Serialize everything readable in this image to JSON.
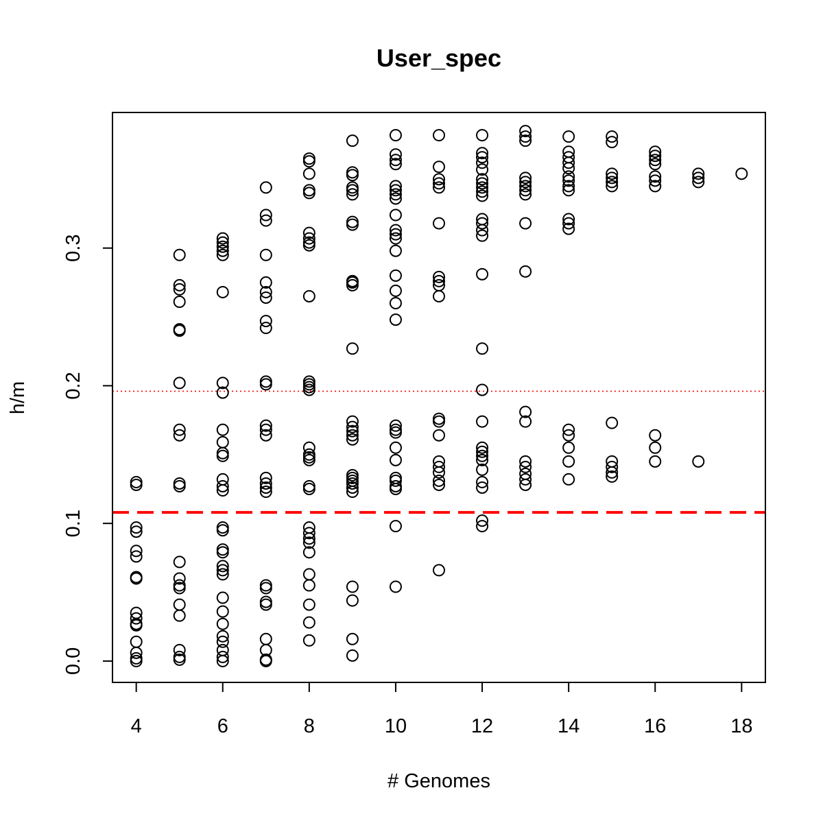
{
  "chart_data": {
    "type": "scatter",
    "title": "User_spec",
    "xlabel": "# Genomes",
    "ylabel": "h/m",
    "xlim": [
      3.45,
      18.55
    ],
    "ylim": [
      -0.0155,
      0.3985
    ],
    "xticks": [
      4,
      6,
      8,
      10,
      12,
      14,
      16,
      18
    ],
    "xtick_labels": [
      "4",
      "6",
      "8",
      "10",
      "12",
      "14",
      "16",
      "18"
    ],
    "yticks": [
      0.0,
      0.1,
      0.2,
      0.3
    ],
    "ytick_labels": [
      "0.0",
      "0.1",
      "0.2",
      "0.3"
    ],
    "grid": false,
    "marker": "open-circle",
    "reference_lines": [
      {
        "y": 0.108,
        "style": "dashed",
        "color": "#ff0000"
      },
      {
        "y": 0.196,
        "style": "dotted",
        "color": "#ff0000"
      }
    ],
    "points": [
      [
        4,
        0.13
      ],
      [
        4,
        0.128
      ],
      [
        4,
        0.097
      ],
      [
        4,
        0.094
      ],
      [
        4,
        0.08
      ],
      [
        4,
        0.076
      ],
      [
        4,
        0.061
      ],
      [
        4,
        0.06
      ],
      [
        4,
        0.035
      ],
      [
        4,
        0.031
      ],
      [
        4,
        0.027
      ],
      [
        4,
        0.026
      ],
      [
        4,
        0.014
      ],
      [
        4,
        0.006
      ],
      [
        4,
        0.002
      ],
      [
        4,
        0.0
      ],
      [
        5,
        0.295
      ],
      [
        5,
        0.273
      ],
      [
        5,
        0.27
      ],
      [
        5,
        0.261
      ],
      [
        5,
        0.241
      ],
      [
        5,
        0.24
      ],
      [
        5,
        0.202
      ],
      [
        5,
        0.168
      ],
      [
        5,
        0.164
      ],
      [
        5,
        0.129
      ],
      [
        5,
        0.127
      ],
      [
        5,
        0.072
      ],
      [
        5,
        0.06
      ],
      [
        5,
        0.055
      ],
      [
        5,
        0.053
      ],
      [
        5,
        0.041
      ],
      [
        5,
        0.033
      ],
      [
        5,
        0.008
      ],
      [
        5,
        0.003
      ],
      [
        5,
        0.001
      ],
      [
        6,
        0.307
      ],
      [
        6,
        0.304
      ],
      [
        6,
        0.301
      ],
      [
        6,
        0.298
      ],
      [
        6,
        0.295
      ],
      [
        6,
        0.268
      ],
      [
        6,
        0.202
      ],
      [
        6,
        0.195
      ],
      [
        6,
        0.168
      ],
      [
        6,
        0.159
      ],
      [
        6,
        0.151
      ],
      [
        6,
        0.149
      ],
      [
        6,
        0.132
      ],
      [
        6,
        0.127
      ],
      [
        6,
        0.124
      ],
      [
        6,
        0.097
      ],
      [
        6,
        0.095
      ],
      [
        6,
        0.081
      ],
      [
        6,
        0.079
      ],
      [
        6,
        0.069
      ],
      [
        6,
        0.066
      ],
      [
        6,
        0.063
      ],
      [
        6,
        0.046
      ],
      [
        6,
        0.036
      ],
      [
        6,
        0.027
      ],
      [
        6,
        0.018
      ],
      [
        6,
        0.014
      ],
      [
        6,
        0.008
      ],
      [
        6,
        0.003
      ],
      [
        6,
        0.0
      ],
      [
        7,
        0.344
      ],
      [
        7,
        0.324
      ],
      [
        7,
        0.32
      ],
      [
        7,
        0.295
      ],
      [
        7,
        0.275
      ],
      [
        7,
        0.268
      ],
      [
        7,
        0.264
      ],
      [
        7,
        0.247
      ],
      [
        7,
        0.242
      ],
      [
        7,
        0.203
      ],
      [
        7,
        0.201
      ],
      [
        7,
        0.171
      ],
      [
        7,
        0.168
      ],
      [
        7,
        0.164
      ],
      [
        7,
        0.133
      ],
      [
        7,
        0.129
      ],
      [
        7,
        0.126
      ],
      [
        7,
        0.123
      ],
      [
        7,
        0.055
      ],
      [
        7,
        0.053
      ],
      [
        7,
        0.043
      ],
      [
        7,
        0.041
      ],
      [
        7,
        0.016
      ],
      [
        7,
        0.008
      ],
      [
        7,
        0.001
      ],
      [
        7,
        0.0
      ],
      [
        8,
        0.365
      ],
      [
        8,
        0.363
      ],
      [
        8,
        0.354
      ],
      [
        8,
        0.342
      ],
      [
        8,
        0.34
      ],
      [
        8,
        0.311
      ],
      [
        8,
        0.307
      ],
      [
        8,
        0.304
      ],
      [
        8,
        0.302
      ],
      [
        8,
        0.265
      ],
      [
        8,
        0.203
      ],
      [
        8,
        0.201
      ],
      [
        8,
        0.199
      ],
      [
        8,
        0.197
      ],
      [
        8,
        0.155
      ],
      [
        8,
        0.15
      ],
      [
        8,
        0.148
      ],
      [
        8,
        0.146
      ],
      [
        8,
        0.127
      ],
      [
        8,
        0.125
      ],
      [
        8,
        0.097
      ],
      [
        8,
        0.093
      ],
      [
        8,
        0.089
      ],
      [
        8,
        0.086
      ],
      [
        8,
        0.079
      ],
      [
        8,
        0.063
      ],
      [
        8,
        0.055
      ],
      [
        8,
        0.041
      ],
      [
        8,
        0.028
      ],
      [
        8,
        0.015
      ],
      [
        9,
        0.378
      ],
      [
        9,
        0.355
      ],
      [
        9,
        0.353
      ],
      [
        9,
        0.344
      ],
      [
        9,
        0.342
      ],
      [
        9,
        0.339
      ],
      [
        9,
        0.319
      ],
      [
        9,
        0.317
      ],
      [
        9,
        0.276
      ],
      [
        9,
        0.275
      ],
      [
        9,
        0.273
      ],
      [
        9,
        0.227
      ],
      [
        9,
        0.174
      ],
      [
        9,
        0.17
      ],
      [
        9,
        0.167
      ],
      [
        9,
        0.164
      ],
      [
        9,
        0.161
      ],
      [
        9,
        0.135
      ],
      [
        9,
        0.133
      ],
      [
        9,
        0.131
      ],
      [
        9,
        0.129
      ],
      [
        9,
        0.126
      ],
      [
        9,
        0.123
      ],
      [
        9,
        0.054
      ],
      [
        9,
        0.044
      ],
      [
        9,
        0.016
      ],
      [
        9,
        0.004
      ],
      [
        10,
        0.382
      ],
      [
        10,
        0.368
      ],
      [
        10,
        0.364
      ],
      [
        10,
        0.361
      ],
      [
        10,
        0.345
      ],
      [
        10,
        0.342
      ],
      [
        10,
        0.339
      ],
      [
        10,
        0.336
      ],
      [
        10,
        0.324
      ],
      [
        10,
        0.313
      ],
      [
        10,
        0.31
      ],
      [
        10,
        0.307
      ],
      [
        10,
        0.298
      ],
      [
        10,
        0.28
      ],
      [
        10,
        0.269
      ],
      [
        10,
        0.26
      ],
      [
        10,
        0.248
      ],
      [
        10,
        0.171
      ],
      [
        10,
        0.168
      ],
      [
        10,
        0.166
      ],
      [
        10,
        0.155
      ],
      [
        10,
        0.146
      ],
      [
        10,
        0.133
      ],
      [
        10,
        0.131
      ],
      [
        10,
        0.127
      ],
      [
        10,
        0.125
      ],
      [
        10,
        0.098
      ],
      [
        10,
        0.054
      ],
      [
        11,
        0.382
      ],
      [
        11,
        0.359
      ],
      [
        11,
        0.35
      ],
      [
        11,
        0.347
      ],
      [
        11,
        0.344
      ],
      [
        11,
        0.318
      ],
      [
        11,
        0.279
      ],
      [
        11,
        0.276
      ],
      [
        11,
        0.273
      ],
      [
        11,
        0.265
      ],
      [
        11,
        0.176
      ],
      [
        11,
        0.174
      ],
      [
        11,
        0.164
      ],
      [
        11,
        0.145
      ],
      [
        11,
        0.141
      ],
      [
        11,
        0.137
      ],
      [
        11,
        0.131
      ],
      [
        11,
        0.128
      ],
      [
        11,
        0.066
      ],
      [
        12,
        0.382
      ],
      [
        12,
        0.369
      ],
      [
        12,
        0.366
      ],
      [
        12,
        0.362
      ],
      [
        12,
        0.357
      ],
      [
        12,
        0.35
      ],
      [
        12,
        0.347
      ],
      [
        12,
        0.344
      ],
      [
        12,
        0.341
      ],
      [
        12,
        0.338
      ],
      [
        12,
        0.321
      ],
      [
        12,
        0.318
      ],
      [
        12,
        0.313
      ],
      [
        12,
        0.309
      ],
      [
        12,
        0.281
      ],
      [
        12,
        0.227
      ],
      [
        12,
        0.197
      ],
      [
        12,
        0.174
      ],
      [
        12,
        0.155
      ],
      [
        12,
        0.152
      ],
      [
        12,
        0.149
      ],
      [
        12,
        0.146
      ],
      [
        12,
        0.139
      ],
      [
        12,
        0.13
      ],
      [
        12,
        0.126
      ],
      [
        12,
        0.102
      ],
      [
        12,
        0.098
      ],
      [
        13,
        0.385
      ],
      [
        13,
        0.381
      ],
      [
        13,
        0.378
      ],
      [
        13,
        0.351
      ],
      [
        13,
        0.348
      ],
      [
        13,
        0.345
      ],
      [
        13,
        0.342
      ],
      [
        13,
        0.339
      ],
      [
        13,
        0.318
      ],
      [
        13,
        0.283
      ],
      [
        13,
        0.181
      ],
      [
        13,
        0.174
      ],
      [
        13,
        0.145
      ],
      [
        13,
        0.141
      ],
      [
        13,
        0.136
      ],
      [
        13,
        0.132
      ],
      [
        13,
        0.128
      ],
      [
        14,
        0.381
      ],
      [
        14,
        0.37
      ],
      [
        14,
        0.366
      ],
      [
        14,
        0.362
      ],
      [
        14,
        0.358
      ],
      [
        14,
        0.352
      ],
      [
        14,
        0.349
      ],
      [
        14,
        0.345
      ],
      [
        14,
        0.342
      ],
      [
        14,
        0.321
      ],
      [
        14,
        0.318
      ],
      [
        14,
        0.314
      ],
      [
        14,
        0.168
      ],
      [
        14,
        0.164
      ],
      [
        14,
        0.155
      ],
      [
        14,
        0.145
      ],
      [
        14,
        0.132
      ],
      [
        15,
        0.381
      ],
      [
        15,
        0.377
      ],
      [
        15,
        0.354
      ],
      [
        15,
        0.351
      ],
      [
        15,
        0.348
      ],
      [
        15,
        0.345
      ],
      [
        15,
        0.173
      ],
      [
        15,
        0.145
      ],
      [
        15,
        0.141
      ],
      [
        15,
        0.137
      ],
      [
        15,
        0.134
      ],
      [
        16,
        0.37
      ],
      [
        16,
        0.367
      ],
      [
        16,
        0.364
      ],
      [
        16,
        0.361
      ],
      [
        16,
        0.352
      ],
      [
        16,
        0.349
      ],
      [
        16,
        0.345
      ],
      [
        16,
        0.164
      ],
      [
        16,
        0.155
      ],
      [
        16,
        0.145
      ],
      [
        17,
        0.354
      ],
      [
        17,
        0.351
      ],
      [
        17,
        0.348
      ],
      [
        17,
        0.145
      ],
      [
        18,
        0.354
      ]
    ]
  }
}
